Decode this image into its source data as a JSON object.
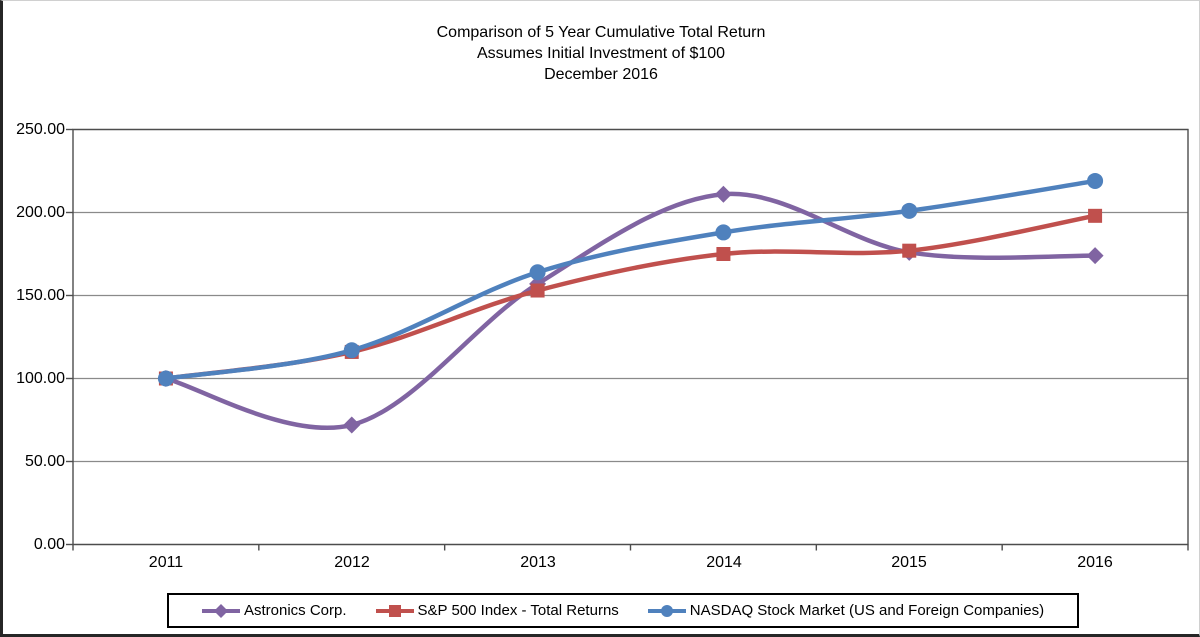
{
  "chart_data": {
    "type": "line",
    "title": "Comparison of 5 Year Cumulative Total Return",
    "subtitle1": "Assumes Initial Investment of $100",
    "subtitle2": "December 2016",
    "categories": [
      "2011",
      "2012",
      "2013",
      "2014",
      "2015",
      "2016"
    ],
    "series": [
      {
        "name": "Astronics Corp.",
        "color": "#8064A2",
        "marker": "diamond",
        "values": [
          100,
          72,
          157,
          211,
          176,
          174
        ]
      },
      {
        "name": "S&P 500 Index - Total Returns",
        "color": "#C0504D",
        "marker": "square",
        "values": [
          100,
          116,
          153,
          175,
          177,
          198
        ]
      },
      {
        "name": "NASDAQ Stock Market (US and Foreign Companies)",
        "color": "#4F81BD",
        "marker": "circle",
        "values": [
          100,
          117,
          164,
          188,
          201,
          219
        ]
      }
    ],
    "ylim": [
      0,
      250
    ],
    "y_tick_step": 50,
    "y_ticks": [
      "250.00",
      "200.00",
      "150.00",
      "100.00",
      "50.00",
      "0.00"
    ],
    "grid": true,
    "smoothed": true,
    "legend_position": "bottom"
  }
}
